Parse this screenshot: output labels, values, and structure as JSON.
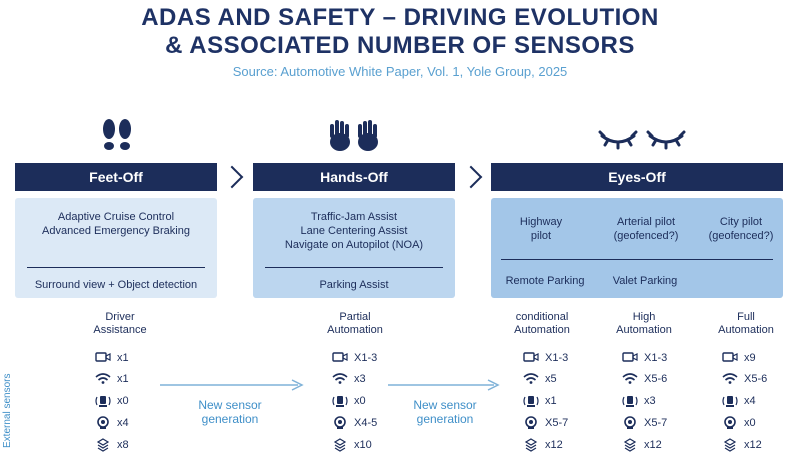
{
  "title_line1": "ADAS AND SAFETY – DRIVING EVOLUTION",
  "title_line2": "& ASSOCIATED NUMBER OF SENSORS",
  "source": "Source: Automotive White Paper, Vol. 1, Yole Group, 2025",
  "stages": [
    {
      "label": "Feet-Off",
      "icon": "feet-icon"
    },
    {
      "label": "Hands-Off",
      "icon": "hands-icon"
    },
    {
      "label": "Eyes-Off",
      "icon": "eyes-icon"
    }
  ],
  "features": {
    "feet": {
      "line1": "Adaptive Cruise Control",
      "line2": "Advanced Emergency Braking",
      "bottom": "Surround view + Object detection"
    },
    "hands": {
      "line1": "Traffic-Jam Assist",
      "line2": "Lane Centering Assist",
      "line3": "Navigate on Autopilot (NOA)",
      "bottom": "Parking Assist"
    },
    "eyes": {
      "col1_l1": "Highway",
      "col1_l2": "pilot",
      "col2_l1": "Arterial pilot",
      "col2_l2": "(geofenced?)",
      "col3_l1": "City pilot",
      "col3_l2": "(geofenced?)",
      "bottom1": "Remote Parking",
      "bottom2": "Valet Parking"
    }
  },
  "levels": [
    {
      "l1": "Driver",
      "l2": "Assistance"
    },
    {
      "l1": "Partial",
      "l2": "Automation"
    },
    {
      "l1": "conditional",
      "l2": "Automation"
    },
    {
      "l1": "High",
      "l2": "Automation"
    },
    {
      "l1": "Full",
      "l2": "Automation"
    }
  ],
  "sensor_types": [
    "camera-icon",
    "radar-icon",
    "lidar-icon",
    "ultrasonic-icon",
    "sensor-module-icon"
  ],
  "sensors": [
    [
      "x1",
      "x1",
      "x0",
      "x4",
      "x8"
    ],
    [
      "X1-3",
      "x3",
      "x0",
      "X4-5",
      "x10"
    ],
    [
      "X1-3",
      "x5",
      "x1",
      "X5-7",
      "x12"
    ],
    [
      "X1-3",
      "X5-6",
      "x3",
      "X5-7",
      "x12"
    ],
    [
      "x9",
      "X5-6",
      "x4",
      "x0",
      "x12"
    ]
  ],
  "new_gen_l1": "New sensor",
  "new_gen_l2": "generation",
  "external_label": "External sensors",
  "colors": {
    "navy": "#1c2d5a",
    "accent": "#3f8fc8"
  }
}
